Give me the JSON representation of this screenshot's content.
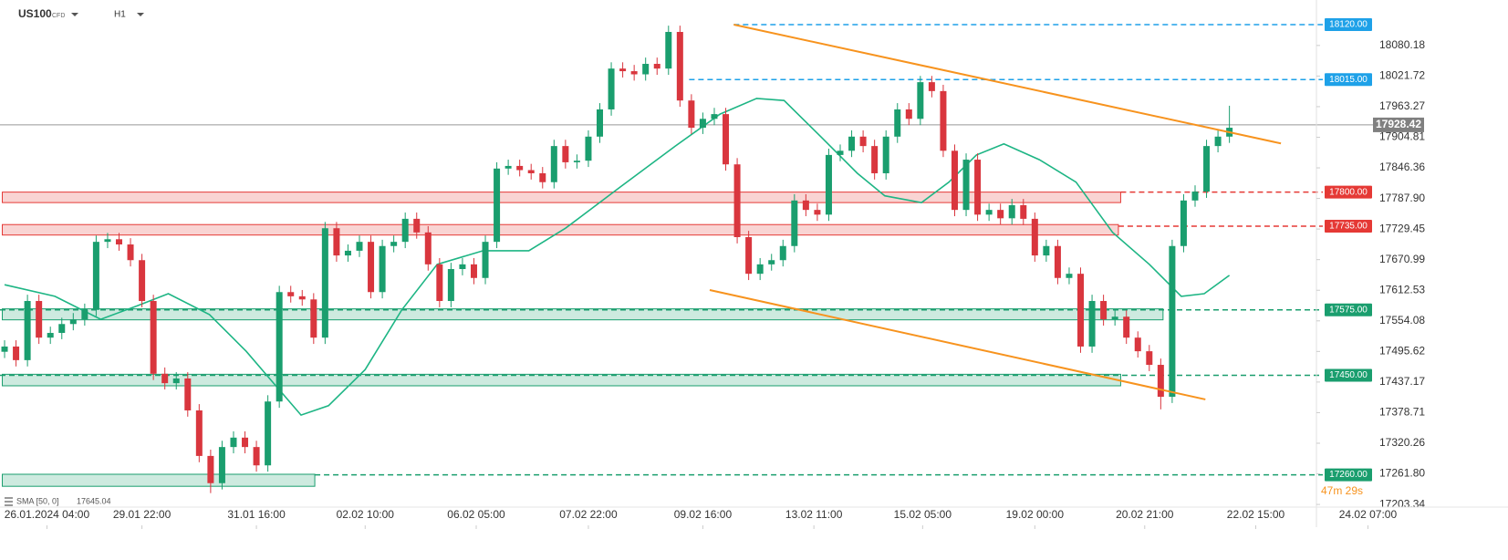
{
  "chart_data": {
    "type": "candlestick",
    "symbol": "US100",
    "instrument": "CFD",
    "timeframe": "H1",
    "up_color": "#1a9e6e",
    "down_color": "#d9363e",
    "xlim": [
      -0.4,
      114.6
    ],
    "ylim": [
      17200,
      18167
    ],
    "xticks": [
      {
        "value": 3.7,
        "label": "26.01.2024 04:00"
      },
      {
        "value": 12,
        "label": "29.01 22:00"
      },
      {
        "value": 22,
        "label": "31.01 16:00"
      },
      {
        "value": 31.5,
        "label": "02.02 10:00"
      },
      {
        "value": 41.2,
        "label": "06.02 05:00"
      },
      {
        "value": 51,
        "label": "07.02 22:00"
      },
      {
        "value": 61,
        "label": "09.02 16:00"
      },
      {
        "value": 70.7,
        "label": "13.02 11:00"
      },
      {
        "value": 80.2,
        "label": "15.02 05:00"
      },
      {
        "value": 90,
        "label": "19.02 00:00"
      },
      {
        "value": 99.6,
        "label": "20.02 21:00"
      },
      {
        "value": 109.3,
        "label": "22.02 15:00"
      },
      {
        "value": 119.1,
        "label": "24.02 07:00"
      }
    ],
    "yticks": [
      17203.34,
      {
        "value": 17261.8,
        "label": "17261.80"
      },
      17320.26,
      17378.71,
      17437.17,
      17495.62,
      17554.08,
      17612.53,
      17670.99,
      17729.45,
      {
        "value": 17787.9,
        "label": "17787.90"
      },
      17846.36,
      17904.81,
      17963.27,
      18021.72,
      18080.18
    ],
    "open": [
      17495,
      17505,
      17479,
      17592,
      17522,
      17531,
      17548,
      17557,
      17575,
      17705,
      17710,
      17700,
      17670,
      17592,
      17453,
      17435,
      17444,
      17383,
      17296,
      17244,
      17313,
      17331,
      17313,
      17278,
      17400,
      17609,
      17601,
      17595,
      17522,
      17731,
      17679,
      17688,
      17705,
      17609,
      17697,
      17705,
      17749,
      17723,
      17662,
      17592,
      17653,
      17662,
      17636,
      17705,
      17845,
      17850,
      17842,
      17836,
      17819,
      17888,
      17857,
      17860,
      17906,
      17958,
      18036,
      18031,
      18025,
      18045,
      18036,
      18106,
      17975,
      17923,
      17940,
      17949,
      17853,
      17714,
      17644,
      17662,
      17670,
      17697,
      17784,
      17766,
      17757,
      17871,
      17879,
      17906,
      17888,
      17836,
      17906,
      17958,
      17940,
      18010,
      17993,
      17879,
      17766,
      17862,
      17757,
      17766,
      17750,
      17775,
      17749,
      17679,
      17697,
      17636,
      17644,
      17505,
      17592,
      17557,
      17562,
      17522,
      17496,
      17470,
      17409,
      17697,
      17784,
      17801,
      17888,
      17906
    ],
    "high": [
      17517,
      17517,
      17604,
      17604,
      17543,
      17560,
      17569,
      17587,
      17717,
      17722,
      17722,
      17712,
      17682,
      17604,
      17465,
      17456,
      17456,
      17395,
      17308,
      17325,
      17343,
      17343,
      17325,
      17412,
      17621,
      17621,
      17613,
      17607,
      17743,
      17743,
      17700,
      17717,
      17717,
      17709,
      17717,
      17761,
      17761,
      17735,
      17674,
      17665,
      17674,
      17674,
      17717,
      17857,
      17862,
      17862,
      17854,
      17848,
      17900,
      17900,
      17872,
      17918,
      17970,
      18048,
      18048,
      18043,
      18057,
      18057,
      18118,
      18118,
      17987,
      17952,
      17961,
      17961,
      17865,
      17726,
      17674,
      17682,
      17709,
      17796,
      17796,
      17778,
      17883,
      17891,
      17918,
      17918,
      17900,
      17918,
      17970,
      17970,
      18022,
      18022,
      18005,
      17891,
      17874,
      17874,
      17778,
      17778,
      17787,
      17787,
      17761,
      17709,
      17709,
      17656,
      17656,
      17604,
      17604,
      17574,
      17574,
      17534,
      17508,
      17482,
      17709,
      17796,
      17813,
      17900,
      17918,
      17965
    ],
    "low": [
      17483,
      17467,
      17467,
      17510,
      17510,
      17519,
      17536,
      17545,
      17563,
      17693,
      17688,
      17658,
      17580,
      17441,
      17423,
      17423,
      17371,
      17284,
      17225,
      17232,
      17301,
      17301,
      17266,
      17266,
      17388,
      17589,
      17583,
      17510,
      17510,
      17667,
      17667,
      17676,
      17597,
      17597,
      17685,
      17693,
      17711,
      17650,
      17580,
      17580,
      17641,
      17624,
      17624,
      17693,
      17833,
      17830,
      17824,
      17807,
      17807,
      17845,
      17845,
      17848,
      17894,
      17946,
      18019,
      18013,
      18013,
      18024,
      18024,
      17963,
      17911,
      17911,
      17928,
      17841,
      17702,
      17632,
      17632,
      17650,
      17658,
      17685,
      17754,
      17745,
      17745,
      17859,
      17867,
      17876,
      17824,
      17824,
      17894,
      17928,
      17928,
      17981,
      17867,
      17754,
      17754,
      17745,
      17745,
      17738,
      17738,
      17737,
      17667,
      17667,
      17624,
      17624,
      17493,
      17493,
      17545,
      17545,
      17510,
      17484,
      17458,
      17385,
      17397,
      17685,
      17772,
      17789,
      17876,
      17894
    ],
    "close": [
      17505,
      17479,
      17592,
      17522,
      17531,
      17548,
      17557,
      17575,
      17705,
      17710,
      17700,
      17670,
      17592,
      17453,
      17435,
      17444,
      17383,
      17296,
      17244,
      17313,
      17331,
      17313,
      17278,
      17400,
      17609,
      17601,
      17595,
      17522,
      17731,
      17679,
      17688,
      17705,
      17609,
      17697,
      17705,
      17749,
      17723,
      17662,
      17592,
      17653,
      17662,
      17636,
      17705,
      17845,
      17850,
      17842,
      17836,
      17819,
      17888,
      17857,
      17860,
      17906,
      17958,
      18036,
      18031,
      18025,
      18045,
      18036,
      18106,
      17975,
      17923,
      17940,
      17949,
      17853,
      17714,
      17644,
      17662,
      17670,
      17697,
      17784,
      17766,
      17757,
      17871,
      17879,
      17906,
      17888,
      17836,
      17906,
      17958,
      17940,
      18010,
      17993,
      17879,
      17766,
      17862,
      17757,
      17766,
      17750,
      17775,
      17749,
      17679,
      17697,
      17636,
      17644,
      17505,
      17592,
      17557,
      17562,
      17522,
      17496,
      17470,
      17409,
      17697,
      17784,
      17801,
      17888,
      17906,
      17923
    ],
    "sma": {
      "name": "SMA [50, 0]",
      "last": 17645.04,
      "color": "#1db584",
      "x": [
        0,
        4.4,
        8.4,
        11.6,
        14.3,
        17.9,
        21.1,
        23.5,
        25.9,
        28.3,
        31.5,
        34.7,
        37.8,
        41.8,
        45.8,
        49,
        53.8,
        58.6,
        62.5,
        65.7,
        68.1,
        71.3,
        74.5,
        76.9,
        80.1,
        82.5,
        84.9,
        87.3,
        90.4,
        93.6,
        96.8,
        100,
        102.8,
        104.8,
        107
      ],
      "values": [
        17623,
        17601,
        17557,
        17583,
        17606,
        17566,
        17496,
        17435,
        17374,
        17392,
        17461,
        17575,
        17662,
        17688,
        17688,
        17731,
        17810,
        17888,
        17949,
        17979,
        17975,
        17906,
        17836,
        17793,
        17780,
        17819,
        17871,
        17892,
        17862,
        17819,
        17723,
        17662,
        17601,
        17606,
        17641
      ]
    },
    "trendlines": [
      {
        "color": "#f7931e",
        "x": [
          63.7,
          111.5
        ],
        "prices": [
          18120,
          17893
        ]
      },
      {
        "color": "#f7931e",
        "x": [
          61.6,
          104.9
        ],
        "prices": [
          17613,
          17404
        ]
      }
    ],
    "levels": [
      {
        "value": 18120,
        "label": "18120.00",
        "color": "#1ea1e8",
        "line_start": 63.7
      },
      {
        "value": 18015,
        "label": "18015.00",
        "color": "#1ea1e8",
        "line_start": 59.8
      },
      {
        "value": 17800,
        "label": "17800.00",
        "color": "#e53935",
        "line_start": 97.5,
        "zone": [
          17780,
          17800
        ],
        "zone_x": [
          -0.2,
          97.5
        ]
      },
      {
        "value": 17735,
        "label": "17735.00",
        "color": "#e53935",
        "line_start": 97.3,
        "zone": [
          17718,
          17738
        ],
        "zone_x": [
          -0.2,
          97.3
        ]
      },
      {
        "value": 17575,
        "label": "17575.00",
        "color": "#1a9e6e",
        "line_start": -0.4,
        "zone": [
          17556,
          17577
        ],
        "zone_x": [
          -0.2,
          101.2
        ]
      },
      {
        "value": 17450,
        "label": "17450.00",
        "color": "#1a9e6e",
        "line_start": -0.4,
        "zone": [
          17430,
          17452
        ],
        "zone_x": [
          -0.2,
          97.5
        ]
      },
      {
        "value": 17260,
        "label": "17260.00",
        "color": "#1a9e6e",
        "line_start": 27.1,
        "zone": [
          17238,
          17261
        ],
        "zone_x": [
          -0.2,
          27.1
        ]
      }
    ],
    "current_price": 17928.42,
    "countdown": "47m 29s"
  }
}
